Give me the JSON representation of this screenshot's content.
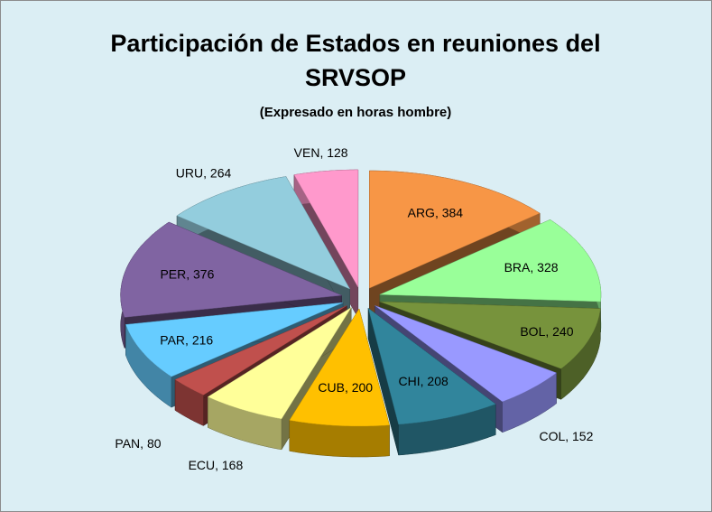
{
  "chart_data": {
    "type": "pie",
    "title": [
      "Participación de Estados en reuniones del",
      "SRVSOP"
    ],
    "subtitle": "(Expresado en horas hombre)",
    "values": [
      384,
      328,
      240,
      152,
      208,
      200,
      168,
      80,
      216,
      376,
      264,
      128
    ],
    "value_labels": [
      "ARG, 384",
      "BRA, 328",
      "BOL, 240",
      "COL, 152",
      "CHI, 208",
      "CUB, 200",
      "ECU, 168",
      "PAN, 80",
      "PAR, 216",
      "PER, 376",
      "URU, 264",
      "VEN, 128"
    ],
    "colors": [
      "#f79646",
      "#99ff99",
      "#77933c",
      "#9999ff",
      "#31859c",
      "#ffc000",
      "#ffff99",
      "#c0504d",
      "#66ccff",
      "#8064a2",
      "#93cddd",
      "#ff99cc"
    ]
  }
}
